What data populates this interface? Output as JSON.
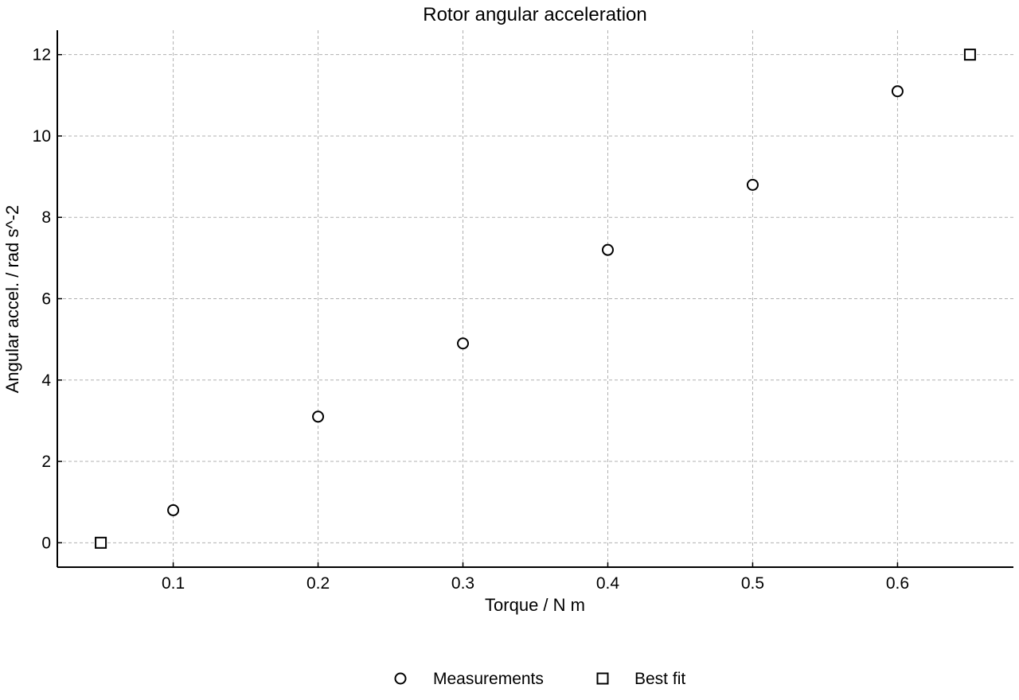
{
  "chart_data": {
    "type": "scatter",
    "title": "Rotor angular acceleration",
    "xlabel": "Torque / N m",
    "ylabel": "Angular accel. / rad s^-2",
    "xlim": [
      0.02,
      0.68
    ],
    "ylim": [
      -0.6,
      12.6
    ],
    "xticks": [
      0.1,
      0.2,
      0.3,
      0.4,
      0.5,
      0.6
    ],
    "yticks": [
      0,
      2,
      4,
      6,
      8,
      10,
      12
    ],
    "xtick_labels": [
      "0.1",
      "0.2",
      "0.3",
      "0.4",
      "0.5",
      "0.6"
    ],
    "ytick_labels": [
      "0",
      "2",
      "4",
      "6",
      "8",
      "10",
      "12"
    ],
    "grid": true,
    "legend_position": "bottom-center",
    "series": [
      {
        "name": "Measurements",
        "marker": "circle",
        "color": "#000000",
        "x": [
          0.1,
          0.2,
          0.3,
          0.4,
          0.5,
          0.6
        ],
        "y": [
          0.8,
          3.1,
          4.9,
          7.2,
          8.8,
          11.1
        ]
      },
      {
        "name": "Best fit",
        "marker": "square",
        "color": "#000000",
        "x": [
          0.05,
          0.65
        ],
        "y": [
          0.0,
          12.0
        ]
      }
    ]
  }
}
